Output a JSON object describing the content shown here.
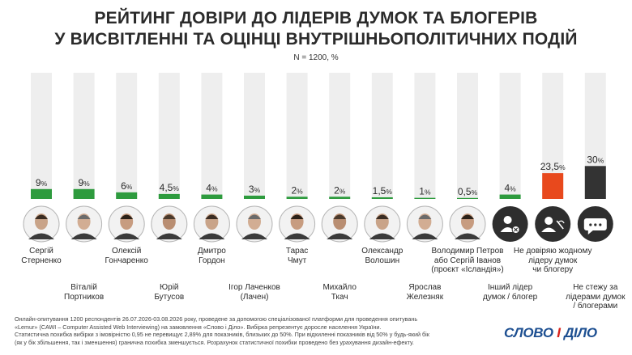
{
  "header": {
    "title_line1": "РЕЙТИНГ ДОВІРИ ДО ЛІДЕРІВ ДУМОК ТА БЛОГЕРІВ",
    "title_line2": "У ВИСВІТЛЕННІ ТА ОЦІНЦІ ВНУТРІШНЬОПОЛІТИЧНИХ ПОДІЙ",
    "subtitle": "N = 1200, %"
  },
  "colors": {
    "green": "#2e9b3e",
    "orange": "#e8491d",
    "dark": "#333333",
    "track": "#eeeeee"
  },
  "chart_data": {
    "type": "bar",
    "title": "РЕЙТИНГ ДОВІРИ ДО ЛІДЕРІВ ДУМОК ТА БЛОГЕРІВ У ВИСВІТЛЕННІ ТА ОЦІНЦІ ВНУТРІШНЬОПОЛІТИЧНИХ ПОДІЙ",
    "subtitle": "N = 1200, %",
    "ylim": [
      0,
      100
    ],
    "bars": [
      {
        "name": "Сергій Стерненко",
        "lines": [
          "Сергій",
          "Стерненко"
        ],
        "value": 9,
        "display": "9",
        "color": "green",
        "icon": "person-photo"
      },
      {
        "name": "Віталій Портников",
        "lines": [
          "Віталій",
          "Портников"
        ],
        "value": 9,
        "display": "9",
        "color": "green",
        "icon": "person-photo"
      },
      {
        "name": "Олексій Гончаренко",
        "lines": [
          "Олексій",
          "Гончаренко"
        ],
        "value": 6,
        "display": "6",
        "color": "green",
        "icon": "person-photo"
      },
      {
        "name": "Юрій Бутусов",
        "lines": [
          "Юрій",
          "Бутусов"
        ],
        "value": 4.5,
        "display": "4,5",
        "color": "green",
        "icon": "person-photo"
      },
      {
        "name": "Дмитро Гордон",
        "lines": [
          "Дмитро",
          "Гордон"
        ],
        "value": 4,
        "display": "4",
        "color": "green",
        "icon": "person-photo"
      },
      {
        "name": "Ігор Лаченков (Лачен)",
        "lines": [
          "Ігор Лаченков",
          "(Лачен)"
        ],
        "value": 3,
        "display": "3",
        "color": "green",
        "icon": "person-photo"
      },
      {
        "name": "Тарас Чмут",
        "lines": [
          "Тарас",
          "Чмут"
        ],
        "value": 2,
        "display": "2",
        "color": "green",
        "icon": "person-photo"
      },
      {
        "name": "Михайло Ткач",
        "lines": [
          "Михайло",
          "Ткач"
        ],
        "value": 2,
        "display": "2",
        "color": "green",
        "icon": "person-photo"
      },
      {
        "name": "Олександр Волошин",
        "lines": [
          "Олександр",
          "Волошин"
        ],
        "value": 1.5,
        "display": "1,5",
        "color": "green",
        "icon": "person-photo"
      },
      {
        "name": "Ярослав Железняк",
        "lines": [
          "Ярослав",
          "Железняк"
        ],
        "value": 1,
        "display": "1",
        "color": "green",
        "icon": "person-photo"
      },
      {
        "name": "Володимир Петров або Сергій Іванов (проєкт «Ісландія»)",
        "lines": [
          "Володимир Петров",
          "або Сергій Іванов",
          "(проєкт «Ісландія»)"
        ],
        "value": 0.5,
        "display": "0,5",
        "color": "green",
        "icon": "person-photo"
      },
      {
        "name": "Інший лідер думок / блогер",
        "lines": [
          "Інший лідер",
          "думок / блогер"
        ],
        "value": 4,
        "display": "4",
        "color": "green",
        "icon": "user-chat-x-icon"
      },
      {
        "name": "Не довіряю жодному лідеру думок чи блогеру",
        "lines": [
          "Не довіряю жодному",
          "лідеру думок",
          "чи блогеру"
        ],
        "value": 23.5,
        "display": "23,5",
        "color": "orange",
        "icon": "user-muted-icon"
      },
      {
        "name": "Не стежу за лідерами думок / блогерами",
        "lines": [
          "Не стежу за",
          "лідерами думок",
          "/ блогерами"
        ],
        "value": 30,
        "display": "30",
        "color": "dark",
        "icon": "chat-dots-icon"
      }
    ]
  },
  "footnote": {
    "line1": "Онлайн-опитування 1200 респондентів 26.07.2026-03.08.2026 року, проведене за допомогою спеціалізованої платформи для проведення опитувань",
    "line2": "«Lemur» (CAWI – Computer Assisted Web Interviewing) на замовлення «Слово і Діло». Вибірка репрезентує доросле населення України.",
    "line3": "Статистична похибка вибірки з імовірністю 0,95 не перевищує 2,89% для показників, близьких до 50%. При відхиленні показників від 50% у будь-який бік",
    "line4": "(як у бік збільшення, так і зменшення) гранична похибка зменшується. Розрахунок статистичної похибки проведено без урахування дизайн-ефекту."
  },
  "logo": {
    "part1": "СЛОВО",
    "pipe": "І",
    "part2": "ДІЛО"
  }
}
